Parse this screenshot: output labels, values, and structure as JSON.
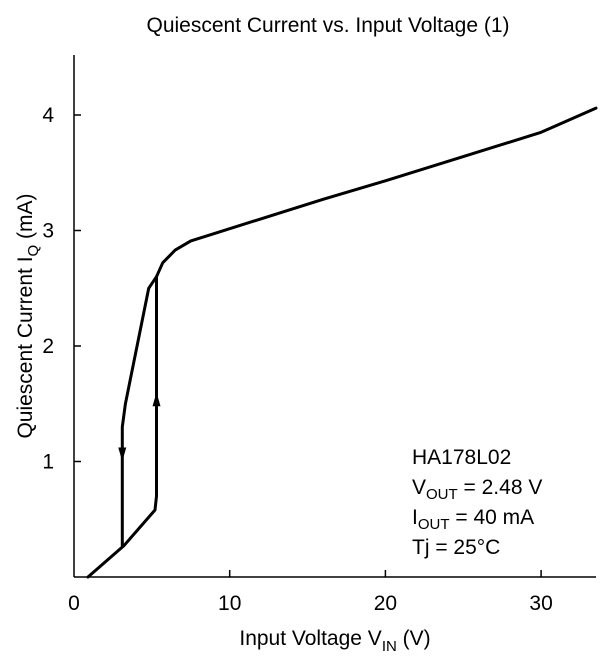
{
  "chart_data": {
    "type": "line",
    "title": "Quiescent Current vs. Input Voltage (1)",
    "xlabel": {
      "main": "Input Voltage  V",
      "sub": "IN",
      "unit": "  (V)"
    },
    "ylabel": {
      "main": "Quiescent Current  I",
      "sub": "Q",
      "unit": "  (mA)"
    },
    "xlim": [
      0,
      35
    ],
    "ylim": [
      0,
      4.5
    ],
    "xticks": [
      0,
      10,
      20,
      30
    ],
    "yticks": [
      1,
      2,
      3,
      4
    ],
    "grid": false,
    "series": [
      {
        "x": [
          0.9,
          3.2,
          5.2,
          5.3,
          5.3,
          5.7,
          6.5,
          7.5,
          8.7,
          12,
          16,
          20,
          25,
          30,
          35
        ],
        "y": [
          0.0,
          0.27,
          0.58,
          0.7,
          2.6,
          2.72,
          2.83,
          2.91,
          2.96,
          3.1,
          3.27,
          3.43,
          3.64,
          3.85,
          4.06
        ]
      },
      {
        "x": [
          3.1,
          3.1,
          3.3,
          4.8,
          5.3
        ],
        "y": [
          0.27,
          1.3,
          1.5,
          2.5,
          2.6
        ]
      }
    ],
    "annotations": {
      "device": "HA178L02",
      "vout": {
        "main": "V",
        "sub": "OUT",
        "rest": " = 2.48 V"
      },
      "iout": {
        "main": "I",
        "sub": "OUT",
        "rest": " = 40 mA"
      },
      "tj": "Tj = 25°C"
    },
    "arrows": [
      {
        "x": 3.1,
        "y": 1.0,
        "direction": "down"
      },
      {
        "x": 5.3,
        "y": 1.6,
        "direction": "up"
      }
    ]
  }
}
